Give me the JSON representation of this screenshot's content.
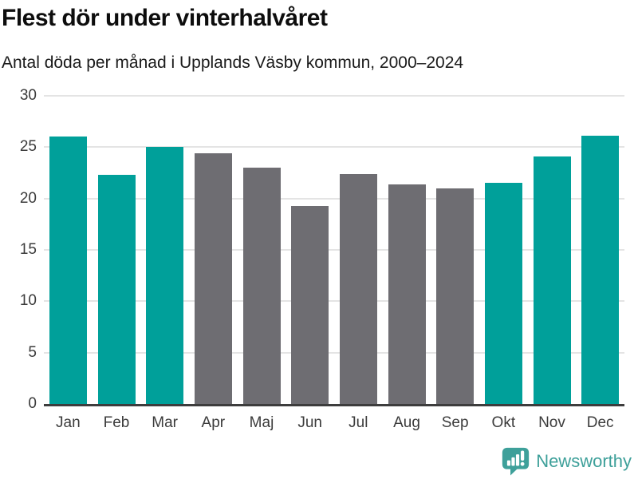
{
  "header": {
    "title": "Flest dör under vinterhalvåret",
    "subtitle": "Antal döda per månad i Upplands Väsby kommun, 2000–2024"
  },
  "chart_data": {
    "type": "bar",
    "title": "Flest dör under vinterhalvåret",
    "subtitle": "Antal döda per månad i Upplands Väsby kommun, 2000–2024",
    "categories": [
      "Jan",
      "Feb",
      "Mar",
      "Apr",
      "Maj",
      "Jun",
      "Jul",
      "Aug",
      "Sep",
      "Okt",
      "Nov",
      "Dec"
    ],
    "values": [
      26.0,
      22.3,
      25.0,
      24.4,
      23.0,
      19.3,
      22.4,
      21.4,
      21.0,
      21.5,
      24.1,
      26.1
    ],
    "bar_color_keys": [
      "winter",
      "winter",
      "winter",
      "summer",
      "summer",
      "summer",
      "summer",
      "summer",
      "summer",
      "winter",
      "winter",
      "winter"
    ],
    "colors": {
      "winter": "#00A09A",
      "summer": "#6E6D72"
    },
    "xlabel": "",
    "ylabel": "",
    "ylim": [
      0,
      30
    ],
    "yticks": [
      0,
      5,
      10,
      15,
      20,
      25,
      30
    ],
    "grid": true,
    "legend": false
  },
  "footer": {
    "brand": "Newsworthy"
  }
}
